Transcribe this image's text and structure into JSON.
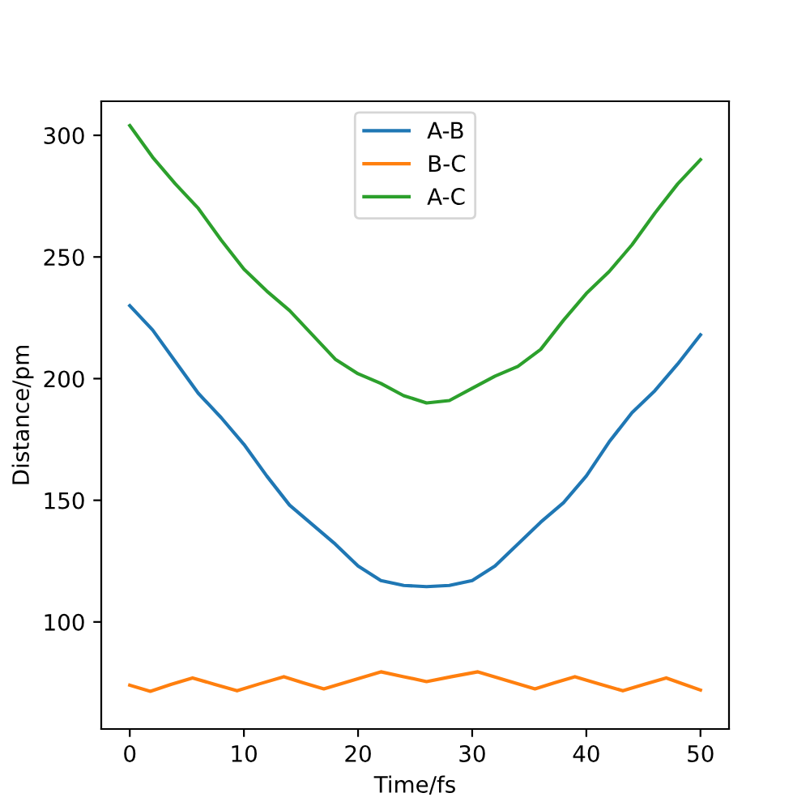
{
  "chart_data": {
    "type": "line",
    "xlabel": "Time/fs",
    "ylabel": "Distance/pm",
    "xlim": [
      -2.5,
      52.5
    ],
    "ylim": [
      56,
      314
    ],
    "xticks": [
      0,
      10,
      20,
      30,
      40,
      50
    ],
    "yticks": [
      100,
      150,
      200,
      250,
      300
    ],
    "grid": false,
    "legend": "top",
    "marker": "none",
    "line_style": "solid",
    "series": [
      {
        "name": "A-B",
        "color": "#1f77b4",
        "x": [
          0,
          2,
          4,
          6,
          8,
          10,
          12,
          14,
          16,
          18,
          20,
          22,
          24,
          26,
          28,
          30,
          32,
          34,
          36,
          38,
          40,
          42,
          44,
          46,
          48,
          50
        ],
        "values": [
          230,
          220,
          207,
          194,
          184,
          173,
          160,
          148,
          140,
          132,
          123,
          117,
          115,
          114.5,
          115,
          117,
          123,
          132,
          141,
          149,
          160,
          174,
          186,
          195,
          206,
          218
        ]
      },
      {
        "name": "B-C",
        "color": "#ff7f0e",
        "x": [
          0,
          1.8,
          3.6,
          5.5,
          7.4,
          9.4,
          11.4,
          13.5,
          15.2,
          17,
          19.5,
          22,
          24,
          26,
          28.2,
          30.5,
          33,
          35.5,
          37.2,
          39,
          41.1,
          43.2,
          45.1,
          47,
          48.5,
          50
        ],
        "values": [
          74,
          71.5,
          74.3,
          77,
          74.4,
          71.7,
          74.6,
          77.5,
          75,
          72.5,
          76,
          79.5,
          77.5,
          75.5,
          77.5,
          79.5,
          76,
          72.5,
          75,
          77.5,
          74.6,
          71.7,
          74.4,
          77,
          74.5,
          72
        ]
      },
      {
        "name": "A-C",
        "color": "#2ca02c",
        "x": [
          0,
          2,
          4,
          6,
          8,
          10,
          12,
          14,
          16,
          18,
          20,
          22,
          24,
          26,
          28,
          30,
          32,
          34,
          36,
          38,
          40,
          42,
          44,
          46,
          48,
          50
        ],
        "values": [
          304,
          291,
          280,
          270,
          257,
          245,
          236,
          228,
          218,
          208,
          202,
          198,
          193,
          190,
          191,
          196,
          201,
          205,
          212,
          224,
          235,
          244,
          255,
          268,
          280,
          290
        ]
      }
    ]
  }
}
